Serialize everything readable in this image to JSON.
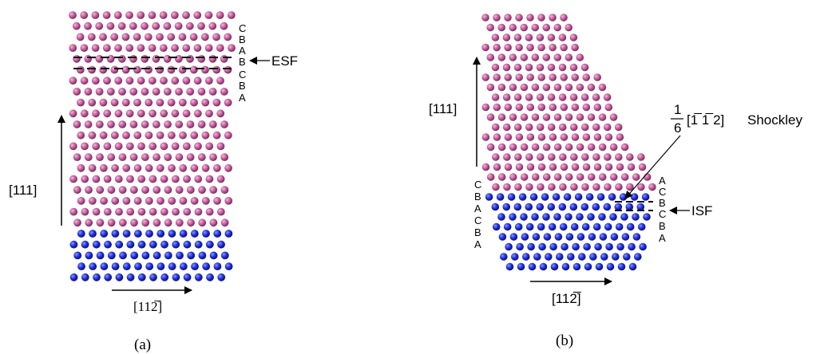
{
  "colors": {
    "top_atoms": "#c25c9a",
    "top_atoms_dark": "#7a2c62",
    "bottom_atoms": "#1f2fe0",
    "bottom_atoms_dark": "#0a1277",
    "lines": "#000000"
  },
  "panel_a": {
    "caption": "(a)",
    "vertical_direction": "[111]",
    "horizontal_direction": "[112̅]",
    "stacking_sequence": [
      "C",
      "B",
      "A",
      "B",
      "C",
      "B",
      "A"
    ],
    "fault_label": "ESF"
  },
  "panel_b": {
    "caption": "(b)",
    "vertical_direction": "[111]",
    "horizontal_direction": "[112̅]",
    "partial_fraction_numerator": "1",
    "partial_fraction_denominator": "6",
    "partial_vector": "[1̅ 1̅ 2]",
    "partial_name": "Shockley",
    "left_sequence": [
      "C",
      "B",
      "A",
      "C",
      "B",
      "A"
    ],
    "right_sequence": [
      "A",
      "C",
      "B",
      "C",
      "B",
      "A"
    ],
    "fault_label": "ISF"
  }
}
